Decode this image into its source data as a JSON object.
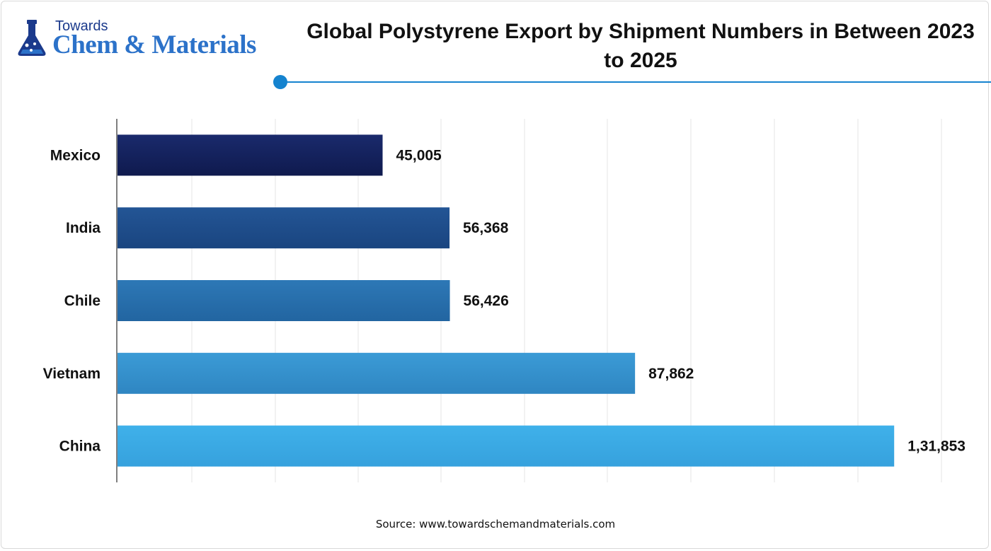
{
  "brand": {
    "top": "Towards",
    "main": "Chem & Materials",
    "colors": {
      "dark": "#1b3a8c",
      "light": "#2c72c9"
    }
  },
  "chart_data": {
    "type": "bar",
    "orientation": "horizontal",
    "title": "Global Polystyrene Export by Shipment Numbers in Between 2023 to 2025",
    "categories": [
      "Mexico",
      "India",
      "Chile",
      "Vietnam",
      "China"
    ],
    "values": [
      45005,
      56368,
      56426,
      87862,
      131853
    ],
    "value_labels": [
      "45,005",
      "56,368",
      "56,426",
      "87,862",
      "1,31,853"
    ],
    "bar_colors": [
      [
        "#0f1a4e",
        "#1a2a6c"
      ],
      [
        "#1a4580",
        "#235595"
      ],
      [
        "#2265a1",
        "#2d78b6"
      ],
      [
        "#2f86c2",
        "#3b9bd6"
      ],
      [
        "#36a1dd",
        "#3fb1ea"
      ]
    ],
    "xlim": [
      0,
      140000
    ],
    "grid": true,
    "xlabel": "",
    "ylabel": ""
  },
  "source": "Source: www.towardschemandmaterials.com",
  "accent_color": "#1583cf"
}
